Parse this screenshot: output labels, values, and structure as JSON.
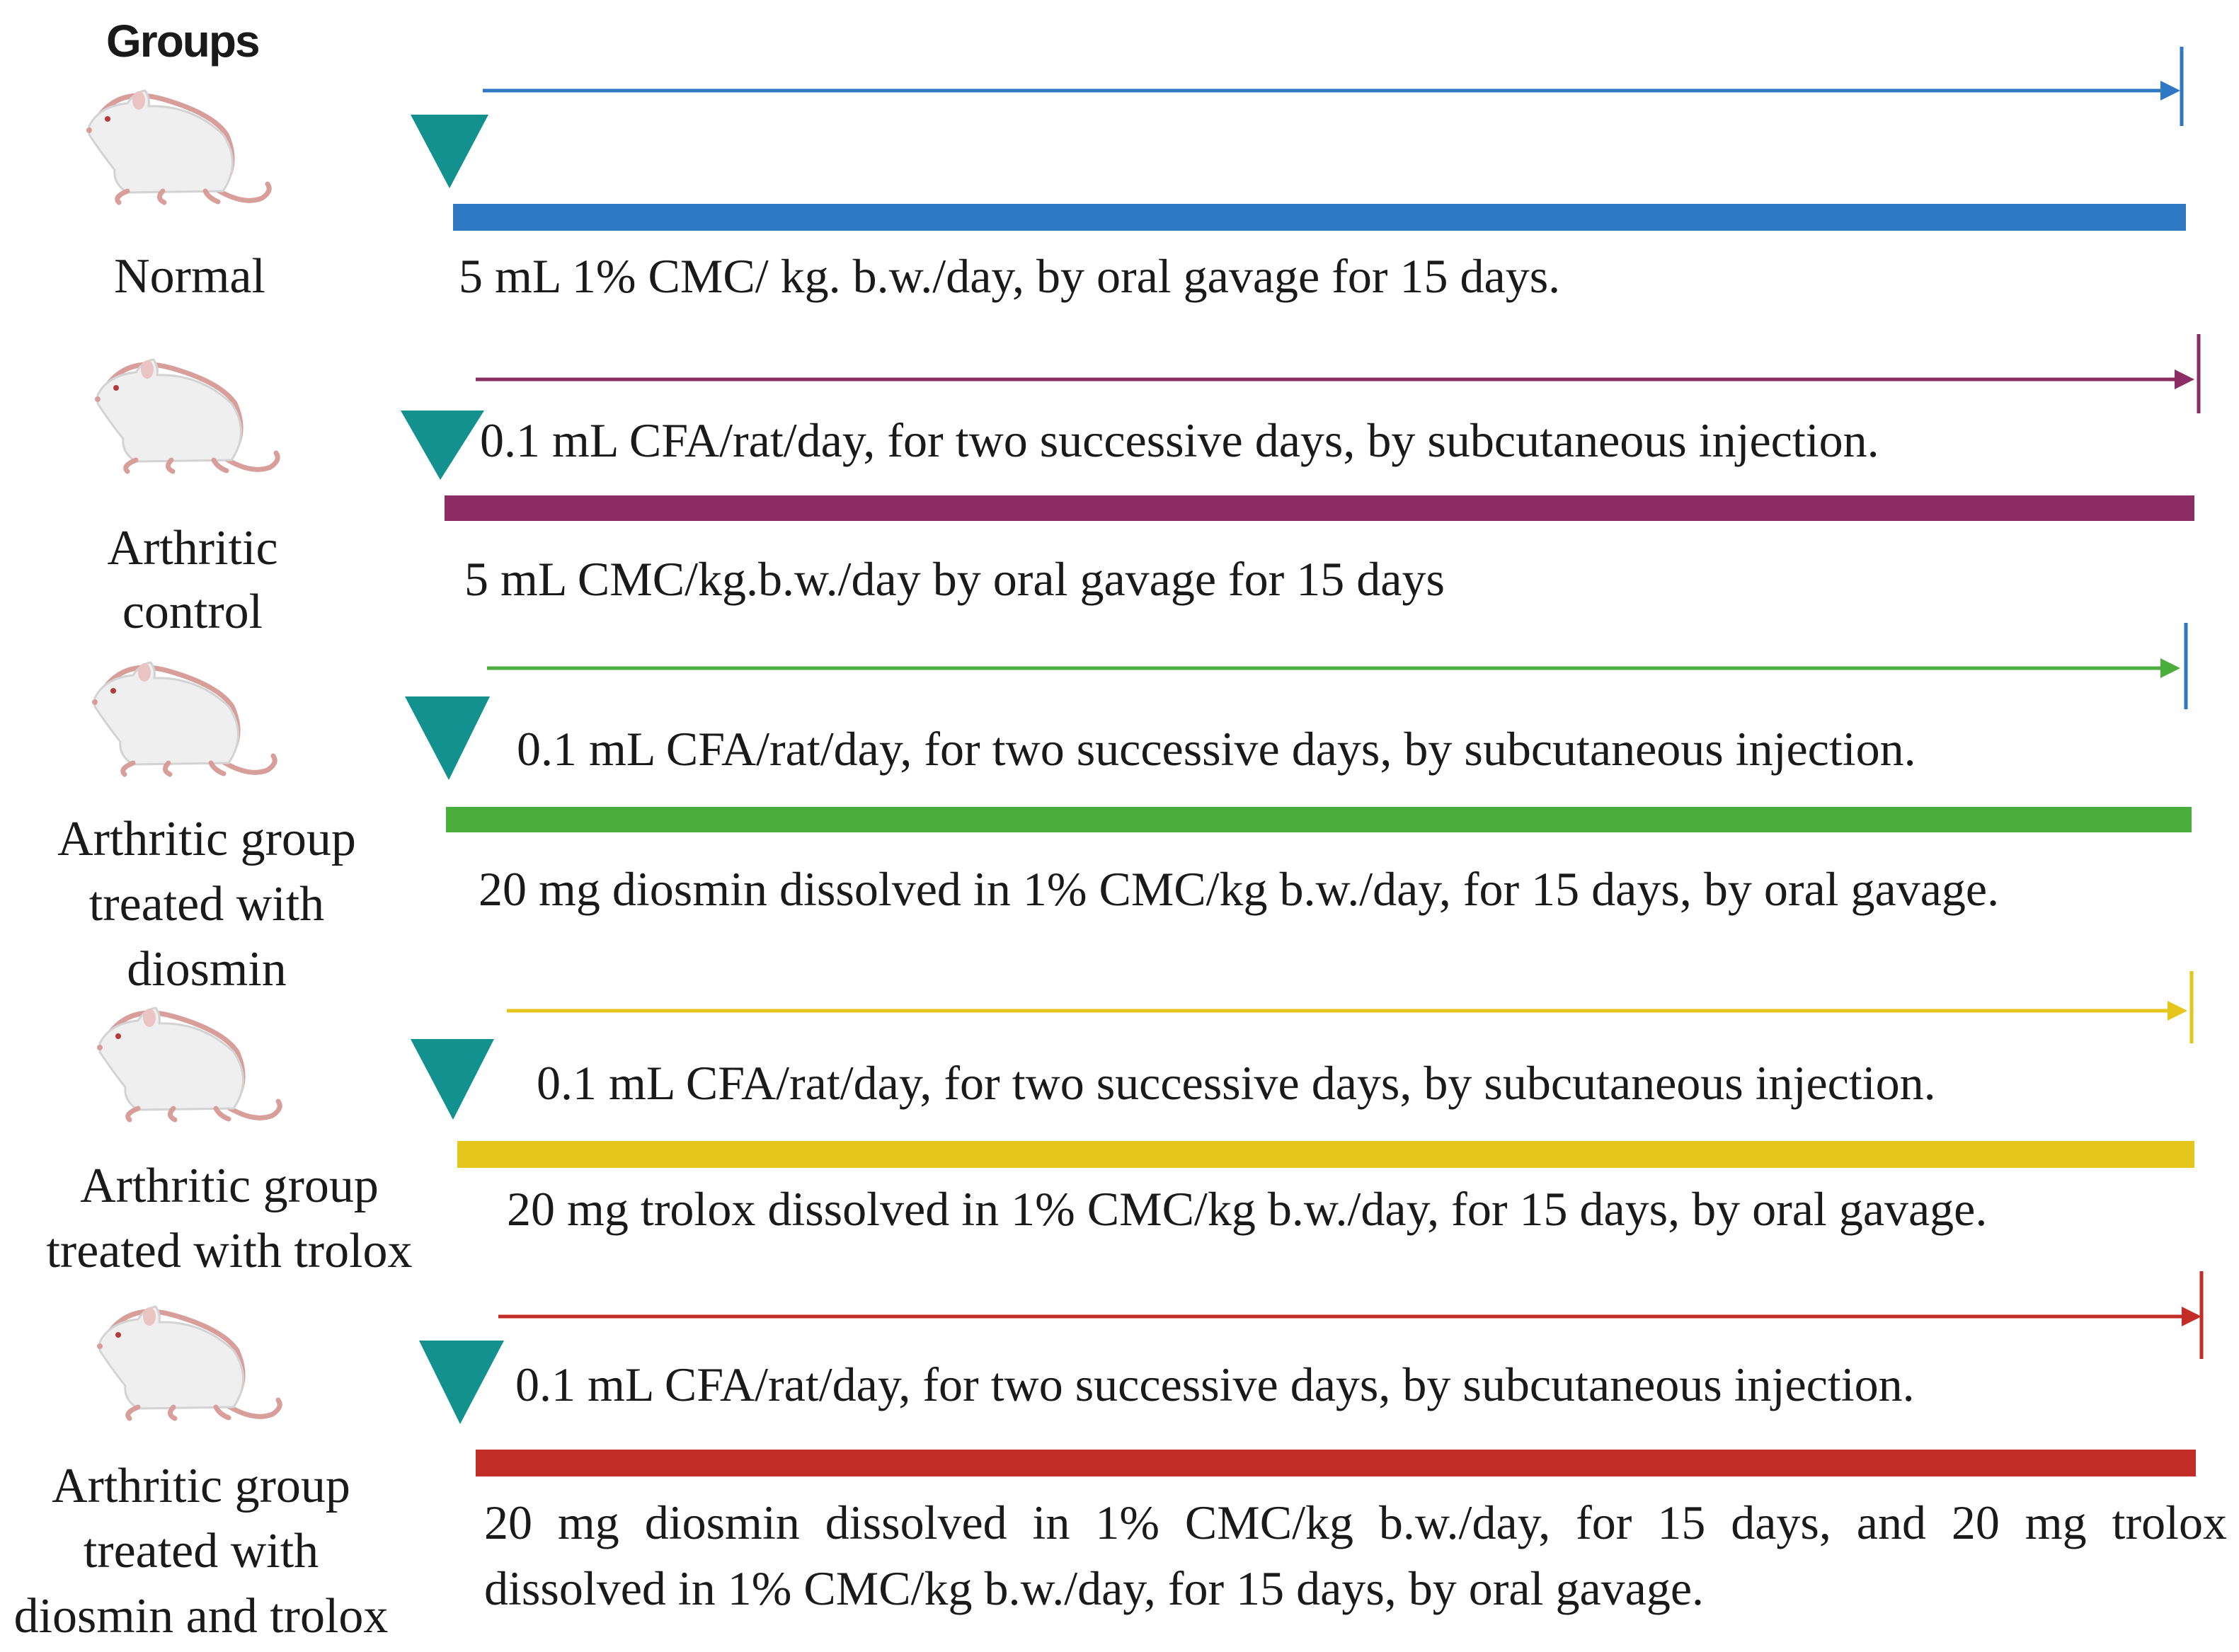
{
  "header": "Groups",
  "colors": {
    "triangle": "#13918e",
    "normal": "#2f79c4",
    "arthritic_control": "#8b2c64",
    "diosmin": "#4aae3c",
    "trolox": "#e5c61d",
    "diosmin_trolox": "#c32d27"
  },
  "icon": "rat-icon",
  "groups": [
    {
      "label_lines": [
        "Normal"
      ],
      "injection": "",
      "treatment_lines": [
        "5 mL 1% CMC/ kg. b.w./day,  by oral gavage for 15 days."
      ]
    },
    {
      "label_lines": [
        "Arthritic",
        "control"
      ],
      "injection": "0.1 mL CFA/rat/day, for two successive days, by subcutaneous injection.",
      "treatment_lines": [
        "5 mL CMC/kg.b.w./day by oral gavage for 15 days"
      ]
    },
    {
      "label_lines": [
        "Arthritic group",
        "treated with",
        "diosmin"
      ],
      "injection": "0.1 mL CFA/rat/day, for two successive days, by subcutaneous injection.",
      "treatment_lines": [
        "20 mg diosmin dissolved in 1% CMC/kg b.w./day, for 15 days, by oral gavage."
      ]
    },
    {
      "label_lines": [
        "Arthritic group",
        "treated with trolox"
      ],
      "injection": "0.1 mL CFA/rat/day, for two successive days, by subcutaneous injection.",
      "treatment_lines": [
        "20 mg trolox dissolved in 1% CMC/kg b.w./day, for 15 days, by oral gavage."
      ]
    },
    {
      "label_lines": [
        "Arthritic  group",
        "treated with",
        "diosmin and trolox"
      ],
      "injection": "0.1 mL CFA/rat/day, for two successive days, by subcutaneous injection.",
      "treatment_lines": [
        "20 mg diosmin dissolved in 1% CMC/kg b.w./day, for 15 days, and 20 mg trolox",
        "dissolved in 1% CMC/kg b.w./day, for 15 days, by oral gavage."
      ]
    }
  ]
}
